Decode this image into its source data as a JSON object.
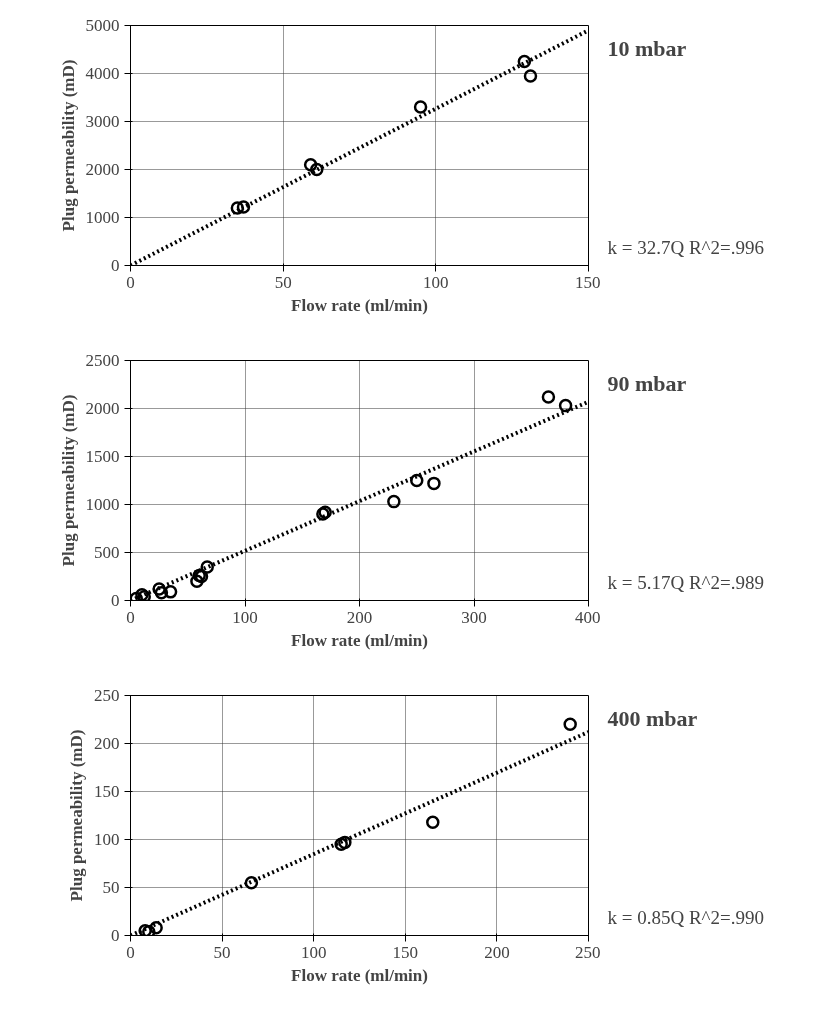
{
  "chart_data": [
    {
      "type": "scatter",
      "title": "10 mbar",
      "xlabel": "Flow rate (ml/min)",
      "ylabel": "Plug permeability (mD)",
      "xlim": [
        0,
        150
      ],
      "ylim": [
        0,
        5000
      ],
      "xticks": [
        0,
        50,
        100,
        150
      ],
      "yticks": [
        0,
        1000,
        2000,
        3000,
        4000,
        5000
      ],
      "grid": true,
      "annotations": [
        "k = 32.7Q  R^2=.996"
      ],
      "series": [
        {
          "marker": "circle",
          "color": "#000000",
          "x": [
            35,
            37,
            59,
            61,
            95,
            129,
            131
          ],
          "values": [
            1200,
            1220,
            2100,
            2000,
            3300,
            4250,
            3950
          ]
        },
        {
          "type": "line",
          "marker": "none",
          "color": "#000000",
          "line_style": "dotted",
          "x": [
            0,
            150
          ],
          "values": [
            0,
            4900
          ]
        }
      ]
    },
    {
      "type": "scatter",
      "title": "90 mbar",
      "xlabel": "Flow rate (ml/min)",
      "ylabel": "Plug permeability (mD)",
      "xlim": [
        0,
        400
      ],
      "ylim": [
        0,
        2500
      ],
      "xticks": [
        0,
        100,
        200,
        300,
        400
      ],
      "yticks": [
        0,
        500,
        1000,
        1500,
        2000,
        2500
      ],
      "grid": true,
      "annotations": [
        "k = 5.17Q  R^2=.989"
      ],
      "series": [
        {
          "marker": "circle",
          "color": "#000000",
          "x": [
            5,
            10,
            12,
            25,
            27,
            35,
            58,
            60,
            62,
            67,
            168,
            170,
            230,
            250,
            265,
            365,
            380
          ],
          "values": [
            20,
            60,
            40,
            120,
            80,
            90,
            200,
            260,
            250,
            350,
            900,
            920,
            1030,
            1250,
            1220,
            2120,
            2030
          ]
        },
        {
          "type": "line",
          "marker": "none",
          "color": "#000000",
          "line_style": "dotted",
          "x": [
            0,
            400
          ],
          "values": [
            0,
            2070
          ]
        }
      ]
    },
    {
      "type": "scatter",
      "title": "400 mbar",
      "xlabel": "Flow rate (ml/min)",
      "ylabel": "Plug permeability (mD)",
      "xlim": [
        0,
        250
      ],
      "ylim": [
        0,
        250
      ],
      "xticks": [
        0,
        50,
        100,
        150,
        200,
        250
      ],
      "yticks": [
        0,
        50,
        100,
        150,
        200,
        250
      ],
      "grid": true,
      "annotations": [
        "k = 0.85Q  R^2=.990"
      ],
      "series": [
        {
          "marker": "circle",
          "color": "#000000",
          "x": [
            8,
            10,
            14,
            66,
            115,
            117,
            165,
            240
          ],
          "values": [
            5,
            4,
            8,
            55,
            95,
            97,
            118,
            220
          ]
        },
        {
          "type": "line",
          "marker": "none",
          "color": "#000000",
          "line_style": "dotted",
          "x": [
            0,
            250
          ],
          "values": [
            0,
            212
          ]
        }
      ]
    }
  ]
}
